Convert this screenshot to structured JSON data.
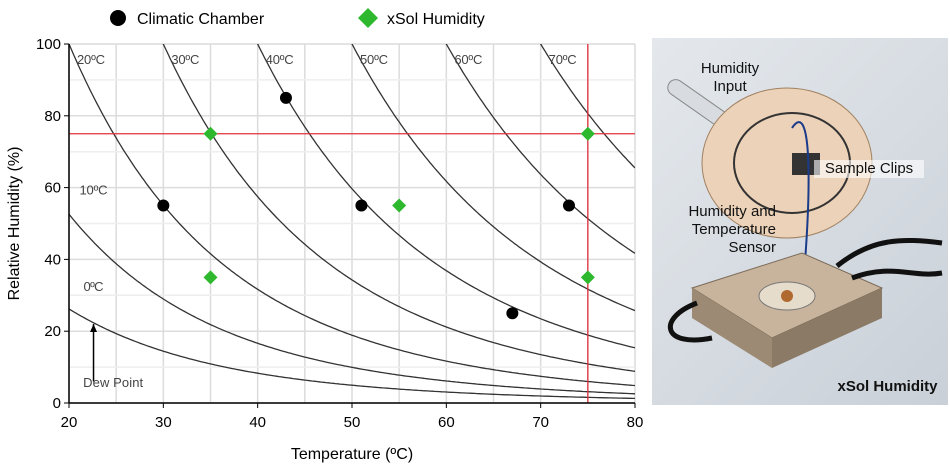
{
  "chart_data": {
    "type": "scatter",
    "xlabel": "Temperature (ºC)",
    "ylabel": "Relative Humidity (%)",
    "xlim": [
      20,
      80
    ],
    "ylim": [
      0,
      100
    ],
    "xticks": [
      20,
      30,
      40,
      50,
      60,
      70,
      80
    ],
    "yticks": [
      0,
      20,
      40,
      60,
      80,
      100
    ],
    "grid": true,
    "legend": "top",
    "series": [
      {
        "name": "Climatic Chamber",
        "marker": "circle",
        "color": "#000000",
        "points": [
          [
            30,
            55
          ],
          [
            43,
            85
          ],
          [
            51,
            55
          ],
          [
            67,
            25
          ],
          [
            73,
            55
          ]
        ]
      },
      {
        "name": "xSol Humidity",
        "marker": "diamond",
        "color": "#2db82d",
        "points": [
          [
            35,
            75
          ],
          [
            35,
            35
          ],
          [
            55,
            55
          ],
          [
            75,
            75
          ],
          [
            75,
            35
          ]
        ]
      }
    ],
    "dew_point_curves": [
      {
        "dew_point": 0,
        "label": "0ºC"
      },
      {
        "dew_point": 10,
        "label": "10ºC"
      },
      {
        "dew_point": 20,
        "label": "20ºC"
      },
      {
        "dew_point": 30,
        "label": "30ºC"
      },
      {
        "dew_point": 40,
        "label": "40ºC"
      },
      {
        "dew_point": 50,
        "label": "50ºC"
      },
      {
        "dew_point": 60,
        "label": "60ºC"
      },
      {
        "dew_point": 70,
        "label": "70ºC"
      }
    ],
    "reference_lines": {
      "x": 75,
      "y": 75,
      "color": "#e0303a"
    },
    "annotation": "Dew Point"
  },
  "image_panel": {
    "labels": [
      "Humidity Input",
      "Sample Clips",
      "Humidity and Temperature Sensor",
      "xSol Humidity"
    ]
  }
}
